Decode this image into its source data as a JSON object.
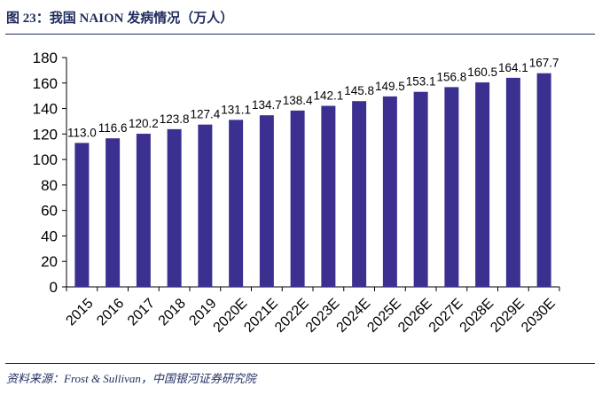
{
  "header": {
    "title": "图 23：我国 NAION 发病情况（万人）"
  },
  "footer": {
    "source": "资料来源：Frost & Sullivan，中国银河证券研究院"
  },
  "chart_data": {
    "type": "bar",
    "title": "",
    "xlabel": "",
    "ylabel": "",
    "ylim": [
      0,
      180
    ],
    "yticks": [
      0,
      20,
      40,
      60,
      80,
      100,
      120,
      140,
      160,
      180
    ],
    "grid": false,
    "bar_color": "#3b3090",
    "categories": [
      "2015",
      "2016",
      "2017",
      "2018",
      "2019",
      "2020E",
      "2021E",
      "2022E",
      "2023E",
      "2024E",
      "2025E",
      "2026E",
      "2027E",
      "2028E",
      "2029E",
      "2030E"
    ],
    "values": [
      113.0,
      116.6,
      120.2,
      123.8,
      127.4,
      131.1,
      134.7,
      138.4,
      142.1,
      145.8,
      149.5,
      153.1,
      156.8,
      160.5,
      164.1,
      167.7
    ],
    "value_labels": [
      "113.0",
      "116.6",
      "120.2",
      "123.8",
      "127.4",
      "131.1",
      "134.7",
      "138.4",
      "142.1",
      "145.8",
      "149.5",
      "153.1",
      "156.8",
      "160.5",
      "164.1",
      "167.7"
    ]
  }
}
